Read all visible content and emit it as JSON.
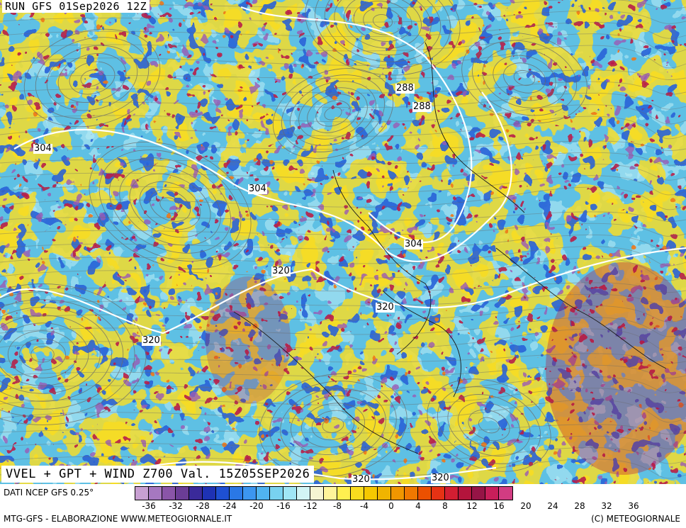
{
  "header": {
    "run_title": "RUN GFS 01Sep2026 12Z"
  },
  "map": {
    "title": "VVEL + GPT + WIND Z700 Val. 15Z05SEP2026",
    "contour_labels": [
      "288",
      "288",
      "304",
      "304",
      "304",
      "320",
      "320",
      "320",
      "320",
      "320"
    ]
  },
  "legend": {
    "source": "DATI NCEP GFS 0.25°",
    "ticks": [
      "-36",
      "-32",
      "-28",
      "-24",
      "-20",
      "-16",
      "-12",
      "-8",
      "-4",
      "0",
      "4",
      "8",
      "12",
      "16",
      "20",
      "24",
      "28",
      "32",
      "36"
    ],
    "colors": [
      "#c8a0d2",
      "#a678c0",
      "#8a55a8",
      "#6b3d96",
      "#3a2a9a",
      "#1e32b4",
      "#1e50d2",
      "#2a78e6",
      "#3c96f0",
      "#50b4f0",
      "#78d2f0",
      "#a0e6f5",
      "#d2f5f5",
      "#f5f5d2",
      "#fff59a",
      "#fff050",
      "#fadc1e",
      "#f5c800",
      "#f0b400",
      "#f09600",
      "#f07800",
      "#eb5000",
      "#e63214",
      "#d21e32",
      "#b4143c",
      "#961446",
      "#c81e5a",
      "#d23c82"
    ]
  },
  "footer": {
    "left": "MTG-GFS - ELABORAZIONE WWW.METEOGIORNALE.IT",
    "right": "(C) METEOGIORNALE"
  }
}
